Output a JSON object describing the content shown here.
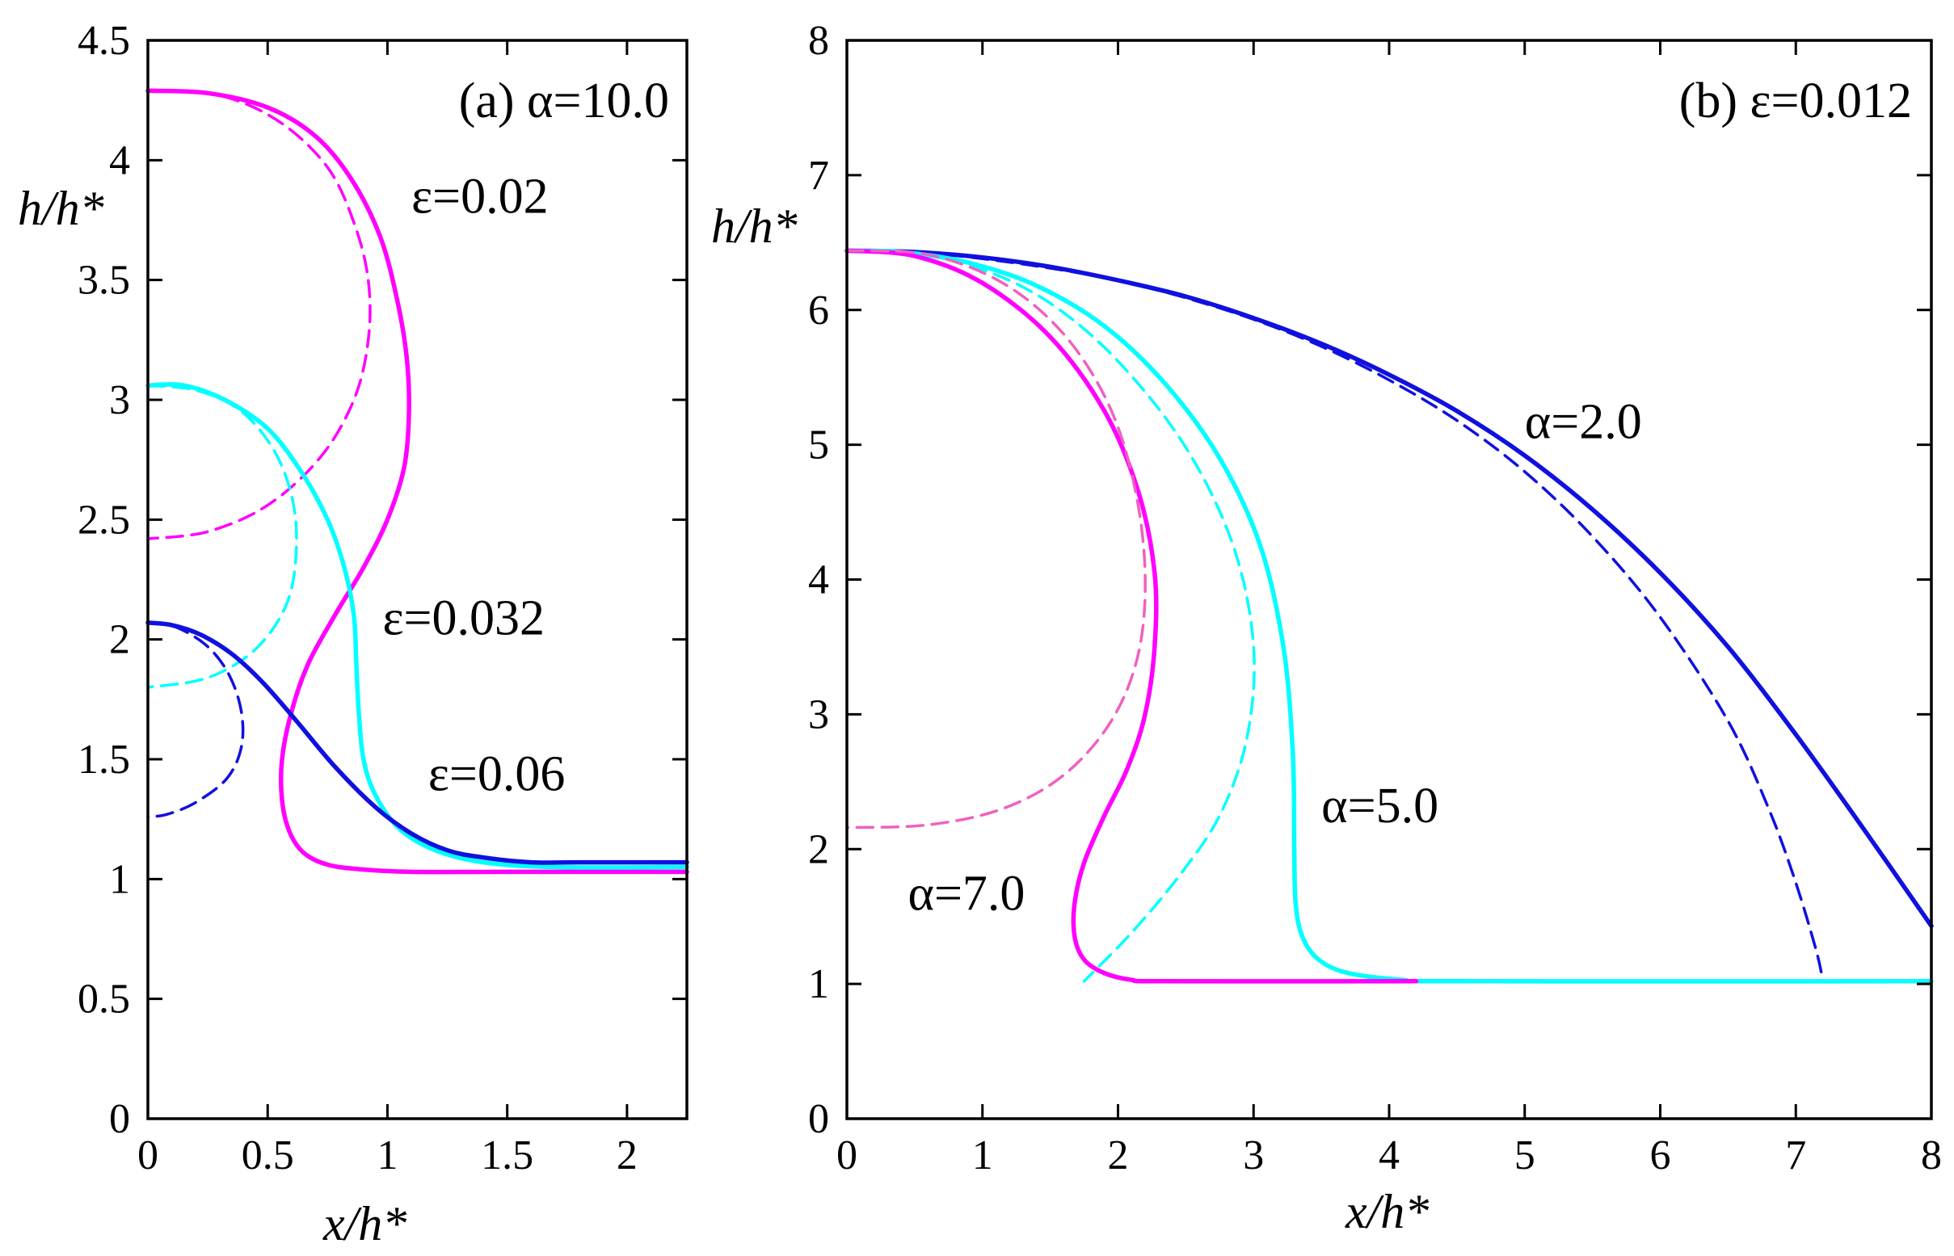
{
  "colors": {
    "magenta": "#ff00ff",
    "cyan": "#00ffff",
    "blue": "#1010e0",
    "pink": "#f060c0"
  },
  "chart_data": [
    {
      "type": "line",
      "panel": "a",
      "title": "(a) α=10.0",
      "xlabel": "x/h*",
      "ylabel": "h/h*",
      "xlim": [
        0,
        2.25
      ],
      "ylim": [
        0,
        4.5
      ],
      "xticks": [
        0,
        0.5,
        1,
        1.5,
        2
      ],
      "xtick_labels": [
        "0",
        "0.5",
        "1",
        "1.5",
        "2"
      ],
      "yticks": [
        0,
        0.5,
        1,
        1.5,
        2,
        2.5,
        3,
        3.5,
        4,
        4.5
      ],
      "ytick_labels": [
        "0",
        "0.5",
        "1",
        "1.5",
        "2",
        "2.5",
        "3",
        "3.5",
        "4",
        "4.5"
      ],
      "legend": "none",
      "grid": false,
      "annotations": [
        {
          "text": "ε=0.02",
          "x": 1.1,
          "y": 3.78
        },
        {
          "text": "ε=0.032",
          "x": 0.98,
          "y": 2.02
        },
        {
          "text": "ε=0.06",
          "x": 1.17,
          "y": 1.37
        }
      ],
      "series": [
        {
          "color": "magenta",
          "dash": false,
          "x": [
            0,
            0.25,
            0.5,
            0.7,
            0.85,
            0.97,
            1.04,
            1.08,
            1.09,
            1.07,
            1.0,
            0.9,
            0.78,
            0.67,
            0.6,
            0.56,
            0.56,
            0.59,
            0.65,
            0.75,
            0.9,
            1.1,
            1.5,
            2.25
          ],
          "y": [
            4.29,
            4.28,
            4.22,
            4.1,
            3.92,
            3.68,
            3.42,
            3.18,
            2.95,
            2.72,
            2.5,
            2.3,
            2.1,
            1.9,
            1.7,
            1.5,
            1.33,
            1.2,
            1.11,
            1.06,
            1.04,
            1.03,
            1.03,
            1.03
          ]
        },
        {
          "color": "magenta",
          "dash": true,
          "x": [
            0,
            0.3,
            0.55,
            0.75,
            0.86,
            0.92,
            0.92,
            0.86,
            0.72,
            0.5,
            0.25,
            0
          ],
          "y": [
            4.29,
            4.27,
            4.16,
            3.97,
            3.74,
            3.5,
            3.25,
            3.0,
            2.76,
            2.56,
            2.45,
            2.42
          ]
        },
        {
          "color": "cyan",
          "dash": false,
          "x": [
            0,
            0.15,
            0.32,
            0.5,
            0.64,
            0.75,
            0.82,
            0.86,
            0.87,
            0.88,
            0.9,
            0.95,
            1.05,
            1.2,
            1.4,
            1.7,
            2.25
          ],
          "y": [
            3.06,
            3.06,
            3.0,
            2.88,
            2.7,
            2.5,
            2.3,
            2.1,
            1.9,
            1.7,
            1.5,
            1.35,
            1.21,
            1.12,
            1.07,
            1.05,
            1.05
          ]
        },
        {
          "color": "cyan",
          "dash": true,
          "x": [
            0,
            0.2,
            0.38,
            0.52,
            0.6,
            0.62,
            0.58,
            0.45,
            0.25,
            0
          ],
          "y": [
            3.06,
            3.04,
            2.96,
            2.8,
            2.6,
            2.38,
            2.15,
            1.96,
            1.84,
            1.8
          ]
        },
        {
          "color": "blue",
          "dash": false,
          "x": [
            0,
            0.1,
            0.22,
            0.35,
            0.48,
            0.62,
            0.78,
            0.95,
            1.1,
            1.25,
            1.4,
            1.6,
            1.8,
            2.25
          ],
          "y": [
            2.07,
            2.06,
            2.02,
            1.94,
            1.82,
            1.66,
            1.47,
            1.3,
            1.19,
            1.12,
            1.09,
            1.07,
            1.07,
            1.07
          ]
        },
        {
          "color": "blue",
          "dash": true,
          "x": [
            0,
            0.12,
            0.25,
            0.34,
            0.39,
            0.39,
            0.33,
            0.2,
            0.08,
            0
          ],
          "y": [
            2.07,
            2.05,
            1.97,
            1.85,
            1.7,
            1.55,
            1.42,
            1.32,
            1.27,
            1.26
          ]
        }
      ]
    },
    {
      "type": "line",
      "panel": "b",
      "title": "(b) ε=0.012",
      "xlabel": "x/h*",
      "ylabel": "h/h*",
      "xlim": [
        0,
        8
      ],
      "ylim": [
        0,
        8
      ],
      "xticks": [
        0,
        1,
        2,
        3,
        4,
        5,
        6,
        7,
        8
      ],
      "xtick_labels": [
        "0",
        "1",
        "2",
        "3",
        "4",
        "5",
        "6",
        "7",
        "8"
      ],
      "yticks": [
        0,
        1,
        2,
        3,
        4,
        5,
        6,
        7,
        8
      ],
      "ytick_labels": [
        "0",
        "1",
        "2",
        "3",
        "4",
        "5",
        "6",
        "7",
        "8"
      ],
      "legend": "none",
      "grid": false,
      "annotations": [
        {
          "text": "α=2.0",
          "x": 5.0,
          "y": 5.05
        },
        {
          "text": "α=5.0",
          "x": 3.5,
          "y": 2.2
        },
        {
          "text": "α=7.0",
          "x": 0.45,
          "y": 1.55
        }
      ],
      "series": [
        {
          "color": "blue",
          "dash": false,
          "x": [
            0,
            0.5,
            1,
            1.5,
            2,
            2.5,
            3,
            3.5,
            4,
            4.5,
            5,
            5.5,
            6,
            6.5,
            7,
            7.5,
            8
          ],
          "y": [
            6.44,
            6.43,
            6.39,
            6.32,
            6.22,
            6.1,
            5.94,
            5.75,
            5.52,
            5.25,
            4.92,
            4.52,
            4.05,
            3.5,
            2.85,
            2.15,
            1.43
          ]
        },
        {
          "color": "blue",
          "dash": true,
          "x": [
            0,
            0.5,
            1,
            1.5,
            2,
            2.5,
            3,
            3.5,
            4,
            4.5,
            5,
            5.5,
            6,
            6.5,
            6.8,
            7.0,
            7.15,
            7.2
          ],
          "y": [
            6.44,
            6.43,
            6.38,
            6.31,
            6.22,
            6.09,
            5.93,
            5.73,
            5.48,
            5.18,
            4.8,
            4.32,
            3.72,
            2.95,
            2.3,
            1.75,
            1.25,
            1.02
          ]
        },
        {
          "color": "cyan",
          "dash": false,
          "x": [
            0,
            0.4,
            0.9,
            1.4,
            1.9,
            2.35,
            2.75,
            3.05,
            3.22,
            3.29,
            3.3,
            3.31,
            3.36,
            3.48,
            3.7,
            4.1,
            4.5,
            8
          ],
          "y": [
            6.44,
            6.43,
            6.35,
            6.18,
            5.88,
            5.45,
            4.9,
            4.25,
            3.5,
            2.7,
            2.0,
            1.6,
            1.35,
            1.18,
            1.08,
            1.03,
            1.02,
            1.02
          ]
        },
        {
          "color": "cyan",
          "dash": true,
          "x": [
            0,
            0.5,
            1.0,
            1.5,
            2.0,
            2.5,
            2.85,
            3.0,
            2.95,
            2.75,
            2.45,
            2.1,
            1.75
          ],
          "y": [
            6.44,
            6.42,
            6.3,
            6.05,
            5.62,
            4.98,
            4.25,
            3.5,
            2.82,
            2.25,
            1.8,
            1.38,
            1.02
          ]
        },
        {
          "color": "magenta",
          "dash": false,
          "x": [
            0,
            0.5,
            1.0,
            1.5,
            1.9,
            2.15,
            2.27,
            2.27,
            2.2,
            2.07,
            1.9,
            1.75,
            1.68,
            1.68,
            1.75,
            1.9,
            2.1,
            2.35,
            4.2
          ],
          "y": [
            6.44,
            6.4,
            6.2,
            5.8,
            5.25,
            4.65,
            4.05,
            3.5,
            3.0,
            2.6,
            2.25,
            1.9,
            1.6,
            1.35,
            1.18,
            1.08,
            1.03,
            1.02,
            1.02
          ]
        },
        {
          "color": "pink",
          "dash": true,
          "x": [
            0,
            0.6,
            1.15,
            1.6,
            1.93,
            2.12,
            2.2,
            2.15,
            1.95,
            1.6,
            1.15,
            0.6,
            0
          ],
          "y": [
            6.44,
            6.41,
            6.2,
            5.82,
            5.3,
            4.7,
            4.05,
            3.45,
            2.95,
            2.55,
            2.3,
            2.18,
            2.16
          ]
        }
      ]
    }
  ]
}
